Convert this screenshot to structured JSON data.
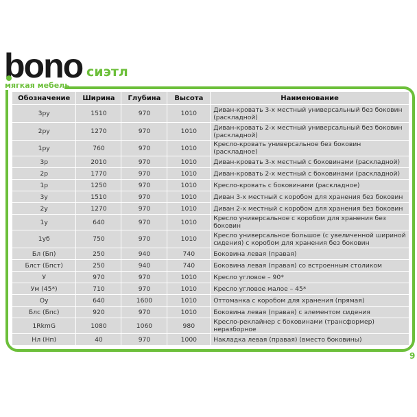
{
  "brand": {
    "logo": "bono",
    "tagline": "мягкая мебель",
    "series": "сиэтл",
    "accent": "#6cbf3a"
  },
  "table": {
    "headers": [
      "Обозначение",
      "Ширина",
      "Глубина",
      "Высота",
      "Наименование"
    ],
    "rows": [
      [
        "3ру",
        "1510",
        "970",
        "1010",
        "Диван-кровать 3-х местный универсальный без боковин (раскладной)"
      ],
      [
        "2ру",
        "1270",
        "970",
        "1010",
        "Диван-кровать 2-х местный универсальный без боковин (раскладной)"
      ],
      [
        "1ру",
        "760",
        "970",
        "1010",
        "Кресло-кровать универсальное без боковин (раскладное)"
      ],
      [
        "3р",
        "2010",
        "970",
        "1010",
        "Диван-кровать 3-х местный с боковинами (раскладной)"
      ],
      [
        "2р",
        "1770",
        "970",
        "1010",
        "Диван-кровать 2-х местный с боковинами (раскладной)"
      ],
      [
        "1р",
        "1250",
        "970",
        "1010",
        "Кресло-кровать с боковинами (раскладное)"
      ],
      [
        "3у",
        "1510",
        "970",
        "1010",
        "Диван 3-х местный с коробом для хранения без боковин"
      ],
      [
        "2у",
        "1270",
        "970",
        "1010",
        "Диван 2-х местный с коробом для хранения без боковин"
      ],
      [
        "1у",
        "640",
        "970",
        "1010",
        "Кресло универсальное с коробом для хранения без боковин"
      ],
      [
        "1уб",
        "750",
        "970",
        "1010",
        "Кресло универсальное большое (с увеличенной шириной сидения) с коробом для хранения без боковин"
      ],
      [
        "Бл (Бп)",
        "250",
        "940",
        "740",
        "Боковина левая (правая)"
      ],
      [
        "Блст (Бпст)",
        "250",
        "940",
        "740",
        "Боковина левая (правая) со встроенным столиком"
      ],
      [
        "У",
        "970",
        "970",
        "1010",
        "Кресло угловое – 90*"
      ],
      [
        "Ум (45*)",
        "710",
        "970",
        "1010",
        "Кресло угловое малое – 45*"
      ],
      [
        "Оу",
        "640",
        "1600",
        "1010",
        "Оттоманка с коробом для хранения (прямая)"
      ],
      [
        "Блс (Бпс)",
        "920",
        "970",
        "1010",
        "Боковина левая (правая) с элементом сидения"
      ],
      [
        "1RkmG",
        "1080",
        "1060",
        "980",
        "Кресло-реклайнер с боковинами (трансформер) неразборное"
      ],
      [
        "Нл (Нп)",
        "40",
        "970",
        "1000",
        "Накладка левая (правая) (вместо боковины)"
      ]
    ]
  },
  "page_number": "9"
}
